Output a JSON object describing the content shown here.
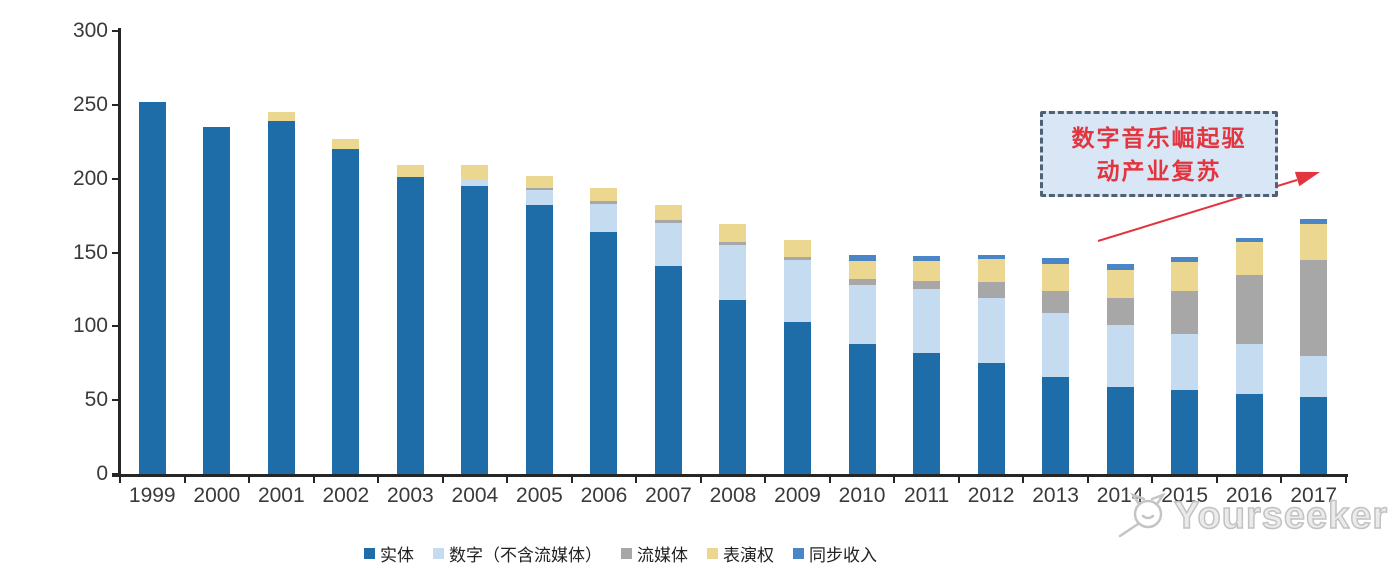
{
  "chart_data": {
    "type": "bar",
    "subtype": "stacked",
    "title": "",
    "categories": [
      "1999",
      "2000",
      "2001",
      "2002",
      "2003",
      "2004",
      "2005",
      "2006",
      "2007",
      "2008",
      "2009",
      "2010",
      "2011",
      "2012",
      "2013",
      "2014",
      "2015",
      "2016",
      "2017"
    ],
    "series": [
      {
        "key": "physical",
        "name": "实体",
        "color": "#1f6da8",
        "values": [
          252,
          235,
          239,
          220,
          201,
          195,
          182,
          164,
          141,
          118,
          103,
          88,
          82,
          75,
          66,
          59,
          57,
          54,
          52
        ]
      },
      {
        "key": "digital-excl-streaming",
        "name": "数字（不含流媒体）",
        "color": "#c5dbef",
        "values": [
          0,
          0,
          0,
          0,
          0,
          5,
          10,
          19,
          29,
          37,
          42,
          40,
          43,
          44,
          43,
          42,
          38,
          34,
          28
        ]
      },
      {
        "key": "streaming",
        "name": "流媒体",
        "color": "#a7a7a7",
        "values": [
          0,
          0,
          0,
          0,
          0,
          0,
          2,
          2,
          2,
          2,
          2,
          4,
          6,
          11,
          15,
          18,
          29,
          47,
          65
        ]
      },
      {
        "key": "performance-rights",
        "name": "表演权",
        "color": "#ebd78f",
        "values": [
          0,
          0,
          6,
          7,
          8,
          9,
          8,
          9,
          10,
          12,
          11.5,
          12.5,
          13,
          15.5,
          18.5,
          19.5,
          19.5,
          22,
          24.5
        ]
      },
      {
        "key": "sync-revenue",
        "name": "同步收入",
        "color": "#4a86c5",
        "values": [
          0,
          0,
          0,
          0,
          0,
          0,
          0,
          0,
          0,
          0,
          0,
          4,
          3.5,
          3,
          3.5,
          3.5,
          3.5,
          3,
          3.5
        ]
      }
    ],
    "ylim": [
      0,
      300
    ],
    "yticks": [
      0,
      50,
      100,
      150,
      200,
      250,
      300
    ],
    "xlabel": "",
    "ylabel": "",
    "grid": false,
    "legend_position": "bottom"
  },
  "annotation": {
    "line1": "数字音乐崛起驱",
    "line2": "动产业复苏",
    "full_text": "数字音乐崛起驱动产业复苏",
    "text_color": "#e2353e",
    "box_fill": "#d9e6f5",
    "box_border": "#4e6175",
    "arrow_color": "#e2353e"
  },
  "watermark": {
    "text": "Yourseeker",
    "icon": "magnifier-cat-icon",
    "color": "#c2c2c2"
  },
  "colors": {
    "axis": "#262626",
    "tick_label": "#3a3a3a",
    "background": "#ffffff"
  }
}
